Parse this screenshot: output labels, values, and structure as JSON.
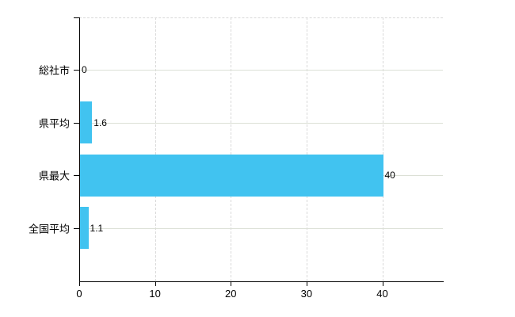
{
  "chart_data": {
    "type": "bar",
    "orientation": "horizontal",
    "title": "",
    "xlabel": "",
    "ylabel": "",
    "categories": [
      "総社市",
      "県平均",
      "県最大",
      "全国平均"
    ],
    "values": [
      0,
      1.6,
      40,
      1.1
    ],
    "data_labels": [
      "0",
      "1.6",
      "40",
      "1.1"
    ],
    "x_ticks": [
      0,
      10,
      20,
      30,
      40
    ],
    "x_tick_labels": [
      "0",
      "10",
      "20",
      "30",
      "40"
    ],
    "xlim": [
      0,
      48
    ],
    "grid": {
      "vertical_style": "dashed",
      "horizontal_style": "solid",
      "top_border_style": "dashed"
    },
    "legend": "none",
    "colors": {
      "bar": "#41C3F0",
      "axis": "#000000",
      "text": "#000000",
      "grid_horizontal": "#dce0d6",
      "grid_vertical": "#d9d9d9",
      "background": "#FFFFFF"
    }
  }
}
